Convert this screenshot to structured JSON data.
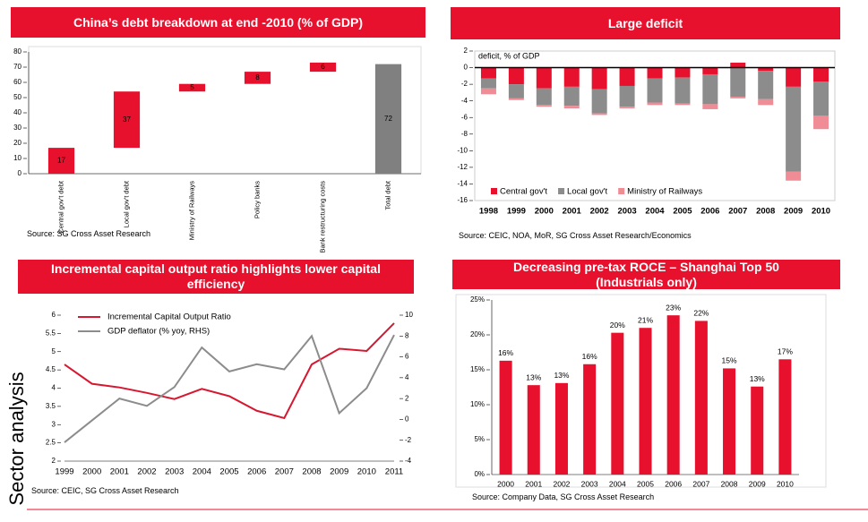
{
  "side_label": "Sector analysis",
  "chart_data": [
    {
      "type": "waterfall",
      "title": "China’s debt breakdown at end -2010 (% of GDP)",
      "categories": [
        "Central gov't debt",
        "Local gov't debt",
        "Ministry of Railways",
        "Policy banks",
        "Bank restructuring costs",
        "Total debt"
      ],
      "values": [
        17,
        37,
        5,
        8,
        6,
        72
      ],
      "color": "#e8112d",
      "total_color": "#808080",
      "ylim": [
        0,
        80
      ],
      "yticks": [
        0,
        10,
        20,
        30,
        40,
        50,
        60,
        70,
        80
      ],
      "source": "Source:  SG Cross Asset Research"
    },
    {
      "type": "stacked_bar",
      "title": "Large deficit",
      "ylabel": "deficit, % of GDP",
      "categories": [
        "1998",
        "1999",
        "2000",
        "2001",
        "2002",
        "2003",
        "2004",
        "2005",
        "2006",
        "2007",
        "2008",
        "2009",
        "2010"
      ],
      "series": [
        {
          "name": "Central gov't",
          "color": "#e8112d",
          "values": [
            -1.3,
            -2.0,
            -2.5,
            -2.3,
            -2.6,
            -2.2,
            -1.3,
            -1.2,
            -0.8,
            0.6,
            -0.4,
            -2.3,
            -1.7
          ]
        },
        {
          "name": "Local gov't",
          "color": "#8c8c8c",
          "values": [
            -1.2,
            -1.7,
            -2.0,
            -2.3,
            -2.9,
            -2.5,
            -2.9,
            -3.1,
            -3.6,
            -3.5,
            -3.4,
            -10.2,
            -4.1
          ]
        },
        {
          "name": "Ministry of Railways",
          "color": "#f08c96",
          "values": [
            -0.7,
            -0.2,
            -0.2,
            -0.3,
            -0.2,
            -0.2,
            -0.3,
            -0.2,
            -0.6,
            -0.2,
            -0.7,
            -1.1,
            -1.6
          ]
        }
      ],
      "ylim": [
        -16,
        2
      ],
      "yticks": [
        -16,
        -14,
        -12,
        -10,
        -8,
        -6,
        -4,
        -2,
        0,
        2
      ],
      "legend": "bottom-left",
      "source": "Source:  CEIC, NOA, MoR, SG Cross Asset Research/Economics"
    },
    {
      "type": "line",
      "title": "Incremental capital output ratio highlights lower capital efficiency",
      "categories": [
        "1999",
        "2000",
        "2001",
        "2002",
        "2003",
        "2004",
        "2005",
        "2006",
        "2007",
        "2008",
        "2009",
        "2010",
        "2011"
      ],
      "series": [
        {
          "name": "Incremental Capital Output Ratio",
          "color": "#d7172f",
          "values": [
            4.65,
            4.12,
            4.02,
            3.87,
            3.7,
            3.98,
            3.78,
            3.38,
            3.18,
            4.65,
            5.08,
            5.02,
            5.78
          ]
        },
        {
          "name": "GDP deflator (% yoy, RHS)",
          "color": "#8c8c8c",
          "axis": "y2",
          "values": [
            -2.2,
            -0.1,
            2.0,
            1.3,
            3.1,
            6.9,
            4.6,
            5.3,
            4.8,
            8.0,
            0.6,
            3.0,
            8.1
          ]
        }
      ],
      "ylim": [
        2,
        6
      ],
      "yticks": [
        2,
        2.5,
        3,
        3.5,
        4,
        4.5,
        5,
        5.5,
        6
      ],
      "y2lim": [
        -4,
        10
      ],
      "y2ticks": [
        -4,
        -2,
        0,
        2,
        4,
        6,
        8,
        10
      ],
      "legend": "top-left",
      "source": "Source:  CEIC, SG Cross Asset Research"
    },
    {
      "type": "bar",
      "title": "Decreasing pre-tax ROCE – Shanghai Top 50 (Industrials only)",
      "categories": [
        "2000",
        "2001",
        "2002",
        "2003",
        "2004",
        "2005",
        "2006",
        "2007",
        "2008",
        "2009",
        "2010"
      ],
      "values": [
        16.3,
        12.8,
        13.1,
        15.8,
        20.3,
        21.0,
        22.8,
        22.0,
        15.2,
        12.6,
        16.5
      ],
      "value_labels": [
        "16%",
        "13%",
        "13%",
        "16%",
        "20%",
        "21%",
        "23%",
        "22%",
        "15%",
        "13%",
        "17%"
      ],
      "color": "#e8112d",
      "ylim": [
        0,
        25
      ],
      "yticks": [
        {
          "value": 0,
          "label": "0%"
        },
        {
          "value": 5,
          "label": "5%"
        },
        {
          "value": 10,
          "label": "10%"
        },
        {
          "value": 15,
          "label": "15%"
        },
        {
          "value": 20,
          "label": "20%"
        },
        {
          "value": 25,
          "label": "25%"
        }
      ],
      "source": "Source:  Company Data, SG Cross Asset Research"
    }
  ]
}
